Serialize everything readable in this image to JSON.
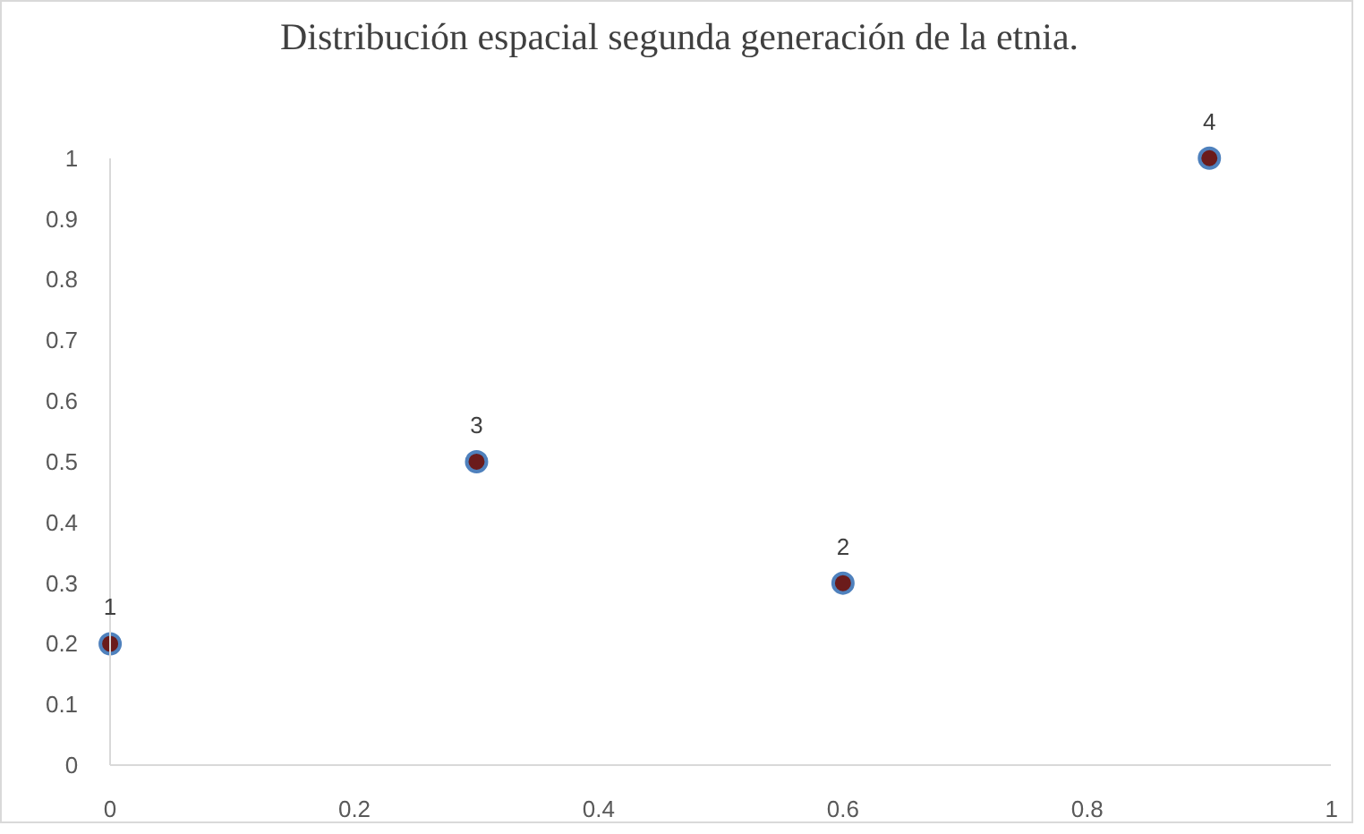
{
  "chart_data": {
    "type": "scatter",
    "title": "Distribución espacial segunda generación de la etnia.",
    "x": [
      0,
      0.3,
      0.6,
      0.9
    ],
    "values": [
      0.2,
      0.5,
      0.3,
      1
    ],
    "color": "#6b1b1b",
    "marker": "circle",
    "xlim": [
      0,
      1
    ],
    "xticks": [
      0,
      0.2,
      0.4,
      0.6,
      0.8,
      1
    ],
    "ylim": [
      0,
      1
    ],
    "yticks": [
      0,
      0.1,
      0.2,
      0.3,
      0.4,
      0.5,
      0.6,
      0.7,
      0.8,
      0.9,
      1
    ],
    "annotations": [
      {
        "text": "1",
        "x": 0,
        "y": 0.2
      },
      {
        "text": "3",
        "x": 0.3,
        "y": 0.5
      },
      {
        "text": "2",
        "x": 0.6,
        "y": 0.3
      },
      {
        "text": "4",
        "x": 0.9,
        "y": 1
      }
    ]
  }
}
